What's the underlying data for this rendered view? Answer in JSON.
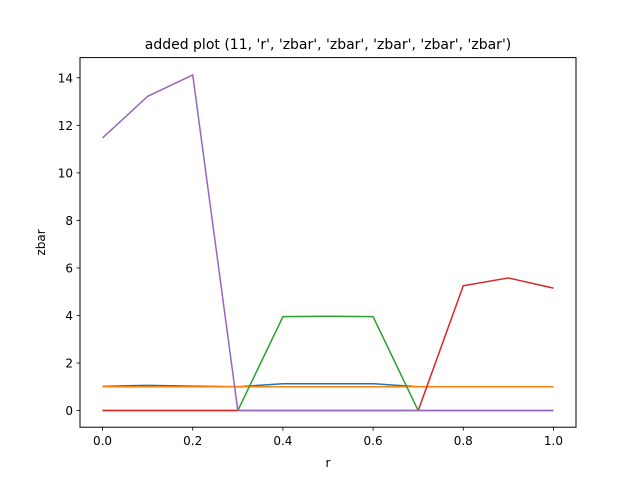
{
  "chart_data": {
    "type": "line",
    "title": "added plot (11, 'r', 'zbar', 'zbar', 'zbar', 'zbar', 'zbar')",
    "xlabel": "r",
    "ylabel": "zbar",
    "xlim": [
      -0.05,
      1.05
    ],
    "ylim": [
      -0.7,
      14.85
    ],
    "xticks": [
      0.0,
      0.2,
      0.4,
      0.6,
      0.8,
      1.0
    ],
    "xtick_labels": [
      "0.0",
      "0.2",
      "0.4",
      "0.6",
      "0.8",
      "1.0"
    ],
    "yticks": [
      0,
      2,
      4,
      6,
      8,
      10,
      12,
      14
    ],
    "ytick_labels": [
      "0",
      "2",
      "4",
      "6",
      "8",
      "10",
      "12",
      "14"
    ],
    "grid": false,
    "legend": "none",
    "x": [
      0.0,
      0.1,
      0.2,
      0.3,
      0.4,
      0.5,
      0.6,
      0.7,
      0.8,
      0.9,
      1.0
    ],
    "series": [
      {
        "color": "#1f77b4",
        "values": [
          1.02,
          1.06,
          1.03,
          1.0,
          1.13,
          1.13,
          1.13,
          1.0,
          1.0,
          1.0,
          1.0
        ]
      },
      {
        "color": "#ff7f0e",
        "values": [
          1.0,
          1.0,
          1.0,
          1.0,
          1.0,
          1.0,
          1.0,
          1.0,
          1.0,
          1.0,
          1.0
        ]
      },
      {
        "color": "#2ca02c",
        "values": [
          0.0,
          0.0,
          0.0,
          0.0,
          3.95,
          3.97,
          3.95,
          0.0,
          0.0,
          0.0,
          0.0
        ]
      },
      {
        "color": "#d62728",
        "values": [
          0.0,
          0.0,
          0.0,
          0.0,
          0.0,
          0.0,
          0.0,
          0.0,
          5.25,
          5.58,
          5.15
        ]
      },
      {
        "color": "#9467bd",
        "values": [
          11.47,
          13.22,
          14.12,
          0.0,
          0.0,
          0.0,
          0.0,
          0.0,
          0.0,
          0.0,
          0.0
        ]
      }
    ]
  }
}
